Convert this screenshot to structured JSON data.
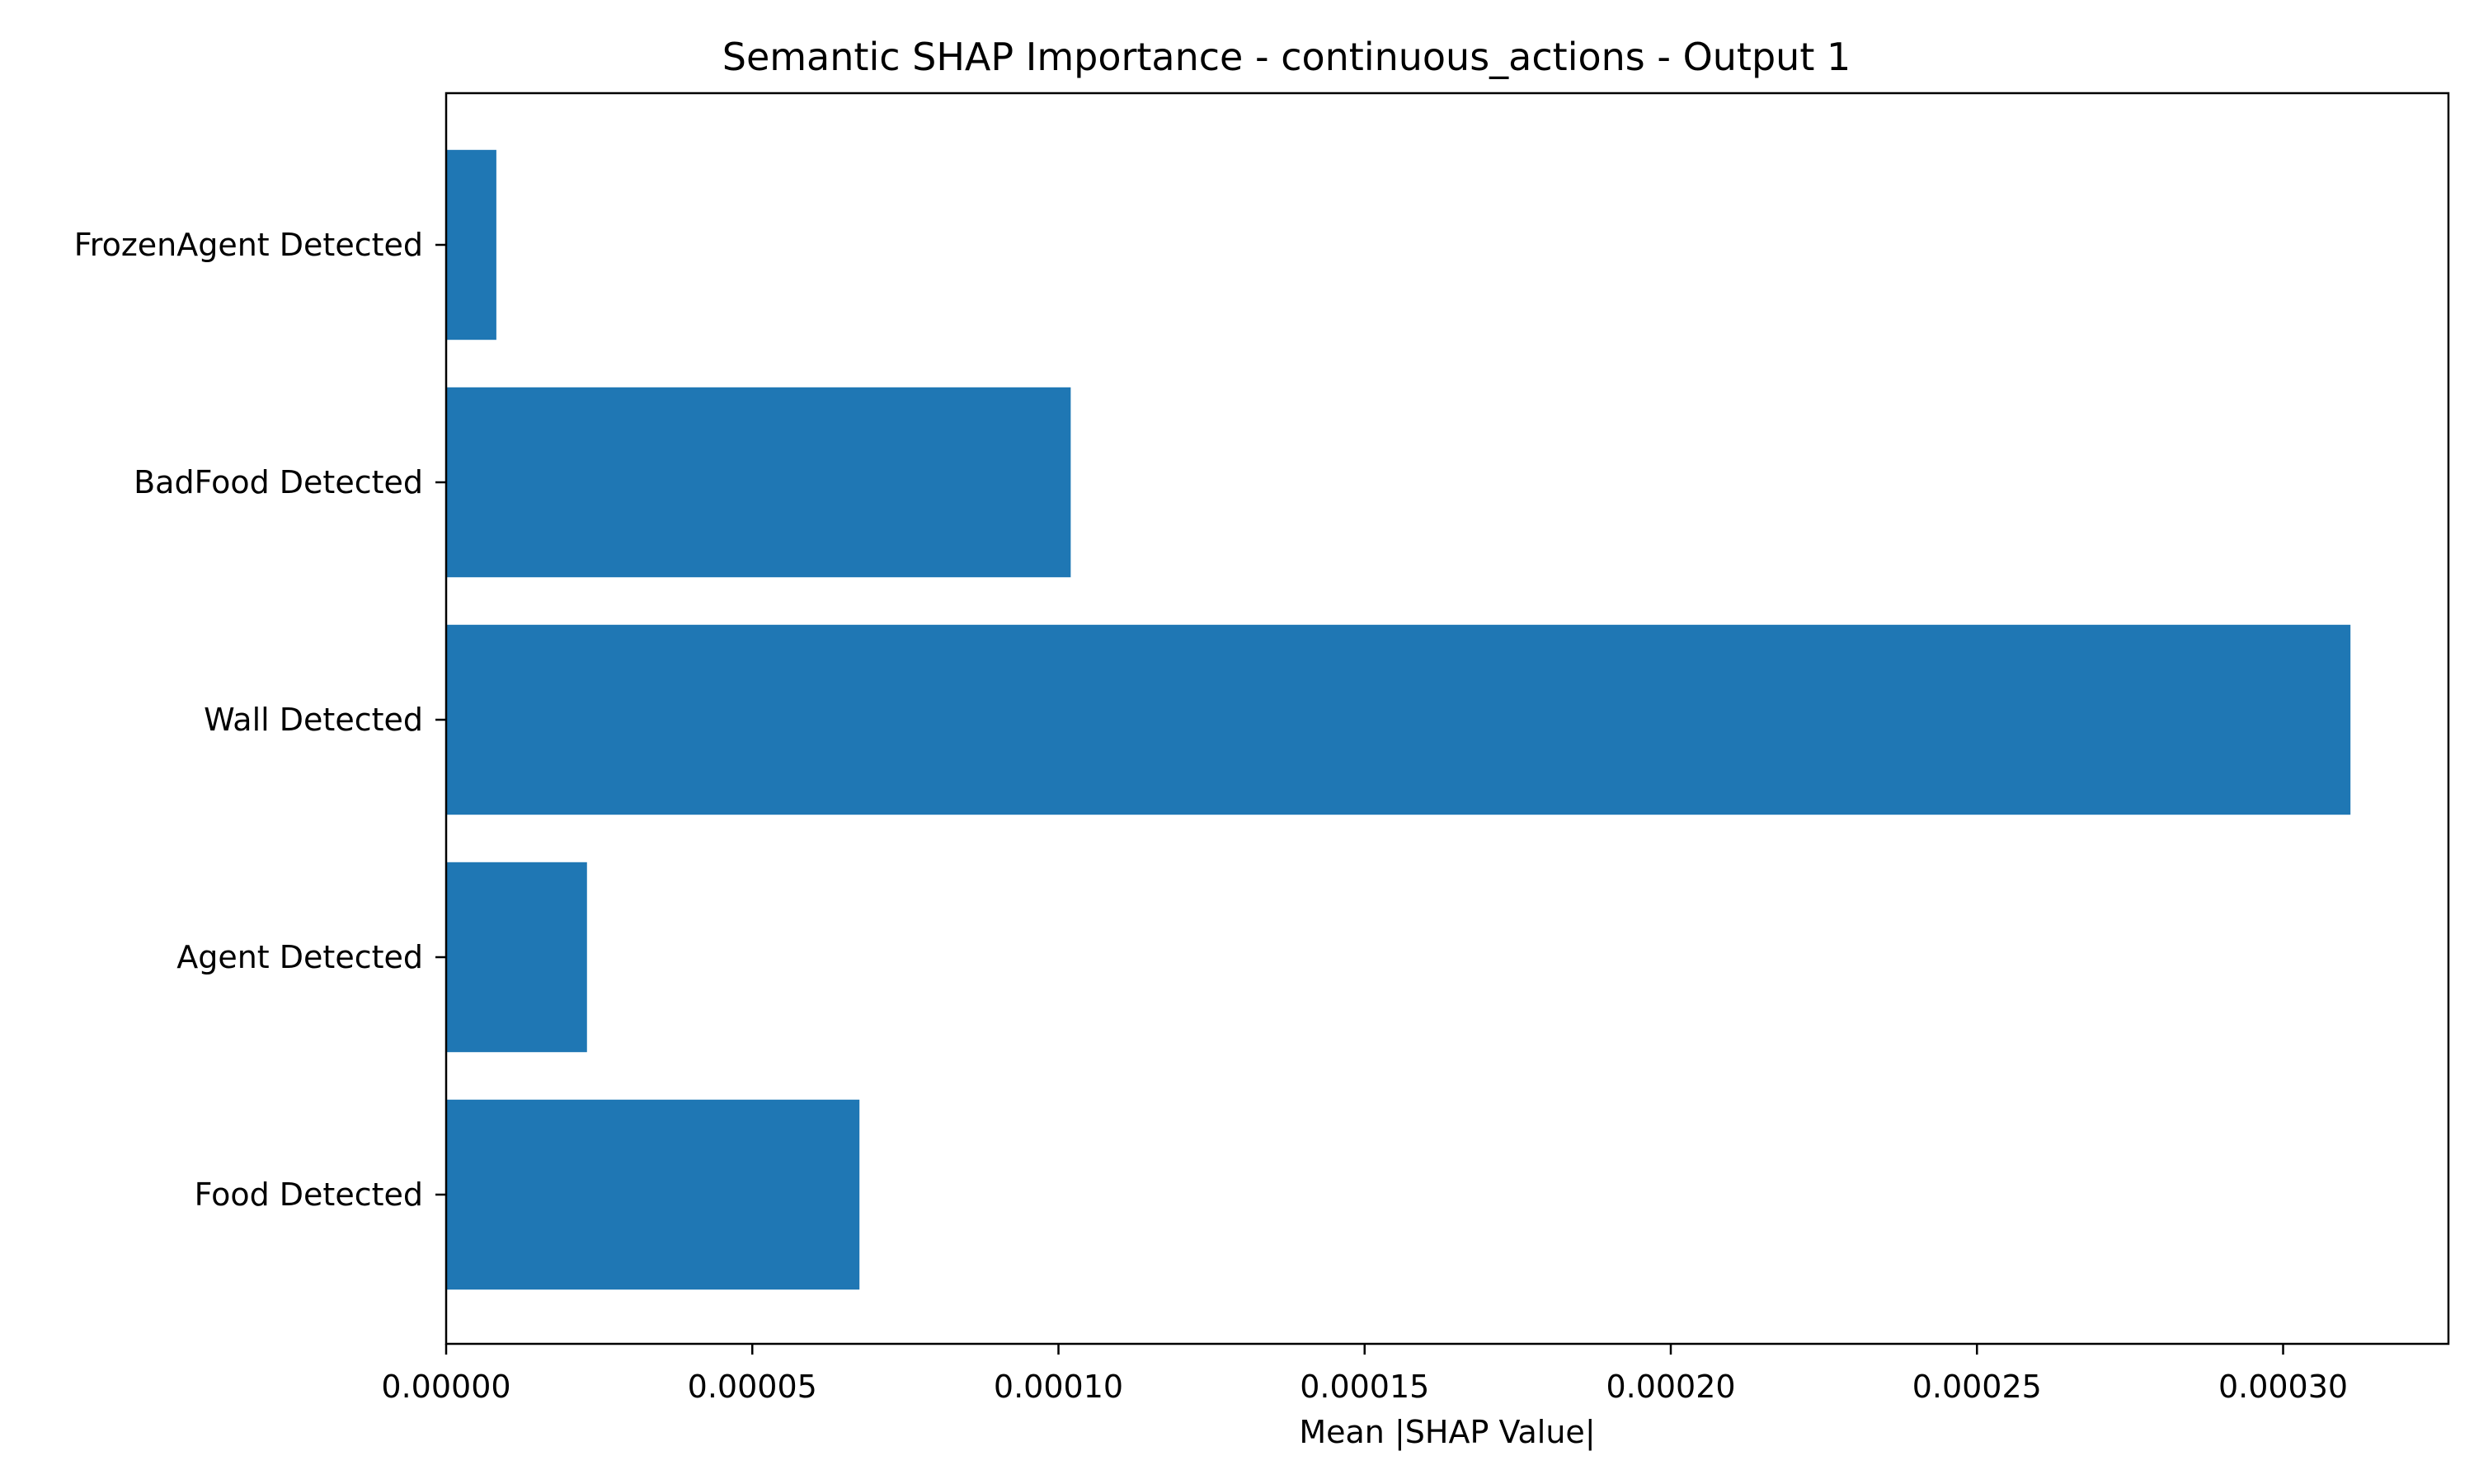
{
  "chart_data": {
    "type": "bar",
    "orientation": "horizontal",
    "title": "Semantic SHAP Importance - continuous_actions - Output 1",
    "xlabel": "Mean |SHAP Value|",
    "ylabel": "",
    "categories": [
      "FrozenAgent Detected",
      "BadFood Detected",
      "Wall Detected",
      "Agent Detected",
      "Food Detected"
    ],
    "values": [
      8.2e-06,
      0.000102,
      0.000311,
      2.3e-05,
      6.75e-05
    ],
    "xlim": [
      0,
      0.000327
    ],
    "xticks": [
      0,
      5e-05,
      0.0001,
      0.00015,
      0.0002,
      0.00025,
      0.0003
    ],
    "xtick_labels": [
      "0.00000",
      "0.00005",
      "0.00010",
      "0.00015",
      "0.00020",
      "0.00025",
      "0.00030"
    ],
    "grid": false,
    "legend": "none",
    "bar_color": "#1f77b4"
  }
}
